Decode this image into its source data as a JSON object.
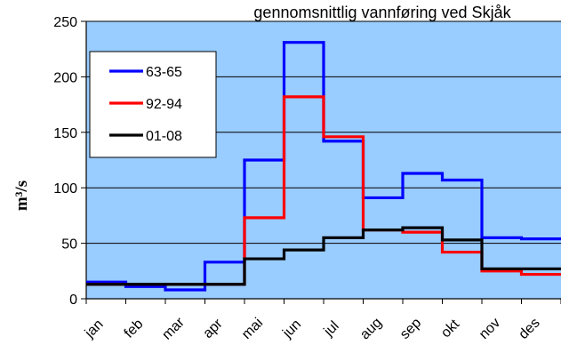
{
  "chart_data": {
    "type": "line",
    "title": "gennomsnittlig vannføring ved Skjåk",
    "ylabel": "m³/s",
    "xlabel": "",
    "categories": [
      "jan",
      "feb",
      "mar",
      "apr",
      "mai",
      "jun",
      "jul",
      "aug",
      "sep",
      "okt",
      "nov",
      "des"
    ],
    "ylim": [
      0,
      250
    ],
    "yticks": [
      0,
      50,
      100,
      150,
      200,
      250
    ],
    "grid": true,
    "legend_position": "upper-left",
    "step": true,
    "series": [
      {
        "name": "63-65",
        "color": "#0000ff",
        "values": [
          15,
          11,
          8,
          33,
          125,
          231,
          142,
          91,
          113,
          107,
          55,
          54
        ]
      },
      {
        "name": "92-94",
        "color": "#ff0000",
        "values": [
          13,
          13,
          13,
          13,
          73,
          182,
          146,
          62,
          60,
          42,
          25,
          22
        ]
      },
      {
        "name": "01-08",
        "color": "#000000",
        "values": [
          13,
          13,
          13,
          13,
          36,
          44,
          55,
          62,
          64,
          53,
          27,
          27
        ]
      }
    ],
    "colors": {
      "plot_background": "#99ccff",
      "gridline": "#000000"
    }
  }
}
